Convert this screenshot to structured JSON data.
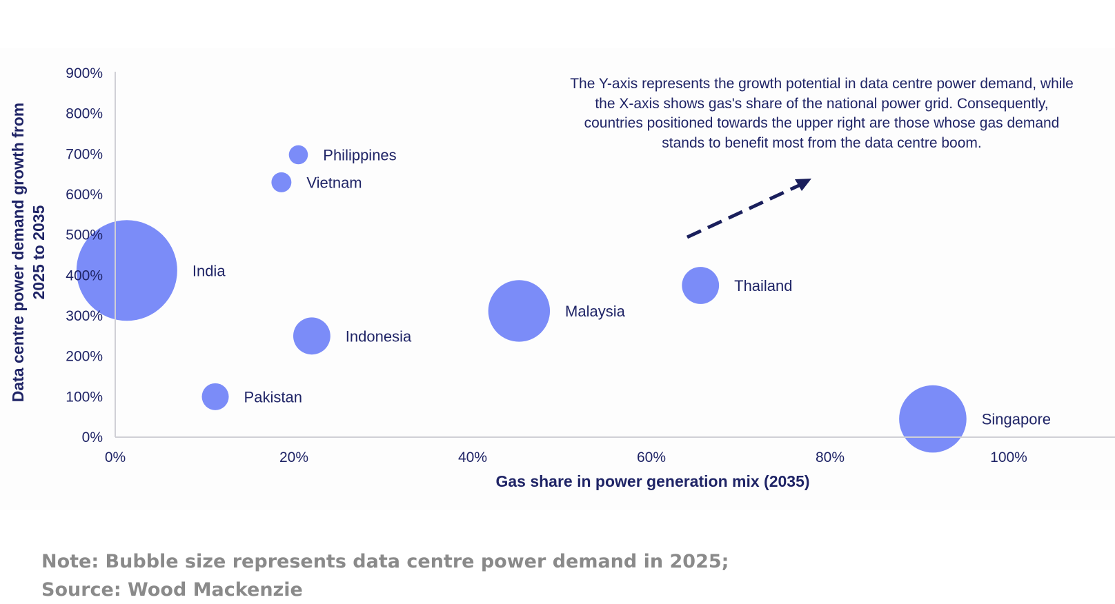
{
  "chart_data": {
    "type": "scatter",
    "title": "",
    "xlabel": "Gas share in power generation mix (2035)",
    "ylabel": "Data centre power demand growth from 2025 to 2035",
    "ylabel_lines": [
      "Data centre power demand growth from",
      "2025 to 2035"
    ],
    "xlim": [
      0,
      110
    ],
    "ylim": [
      0,
      900
    ],
    "x_ticks": [
      "0%",
      "20%",
      "40%",
      "60%",
      "80%",
      "100%"
    ],
    "x_tick_values": [
      0,
      20,
      40,
      60,
      80,
      100
    ],
    "y_ticks": [
      "0%",
      "100%",
      "200%",
      "300%",
      "400%",
      "500%",
      "600%",
      "700%",
      "800%",
      "900%"
    ],
    "y_tick_values": [
      0,
      100,
      200,
      300,
      400,
      500,
      600,
      700,
      800,
      900
    ],
    "bubble_color": "#7b8cf8",
    "text_color": "#1f2466",
    "grid": false,
    "points": [
      {
        "name": "Philippines",
        "x": 20.5,
        "y": 698,
        "size": 1
      },
      {
        "name": "Vietnam",
        "x": 18.6,
        "y": 630,
        "size": 1.1
      },
      {
        "name": "India",
        "x": 1.3,
        "y": 412,
        "size": 28
      },
      {
        "name": "Indonesia",
        "x": 22,
        "y": 250,
        "size": 3.8
      },
      {
        "name": "Pakistan",
        "x": 11.2,
        "y": 100,
        "size": 2
      },
      {
        "name": "Malaysia",
        "x": 45.2,
        "y": 312,
        "size": 10.5
      },
      {
        "name": "Thailand",
        "x": 65.5,
        "y": 375,
        "size": 3.8
      },
      {
        "name": "Singapore",
        "x": 91.5,
        "y": 45,
        "size": 12.5
      }
    ],
    "annotation": "The Y-axis represents the growth potential in data centre power demand, while the X-axis shows gas's share of the national power grid. Consequently, countries positioned towards the upper right are those whose gas demand stands to benefit most from the data centre boom."
  },
  "annotation_lines": [
    "The Y-axis represents the growth potential in data centre power demand, while",
    "the X-axis shows gas's share of the national power grid. Consequently,",
    "countries positioned towards the upper right are those whose gas demand",
    "stands to benefit most from the data centre boom."
  ],
  "footer": {
    "note": "Note: Bubble size represents data centre power demand in 2025;",
    "source": "Source: Wood Mackenzie"
  }
}
